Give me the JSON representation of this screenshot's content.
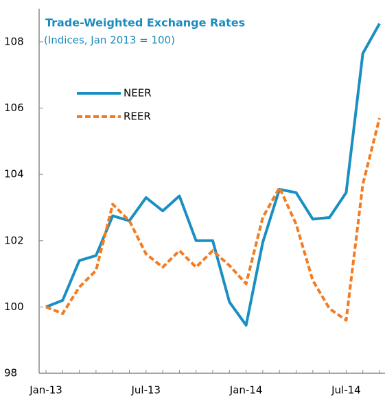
{
  "chart_data": {
    "type": "line",
    "title": "Trade-Weighted Exchange Rates",
    "subtitle": "(Indices, Jan 2013 = 100)",
    "categories": [
      "Jan-13",
      null,
      null,
      null,
      null,
      null,
      "Jul-13",
      null,
      null,
      null,
      null,
      null,
      "Jan-14",
      null,
      null,
      null,
      null,
      null,
      "Jul-14",
      null,
      null
    ],
    "series": [
      {
        "name": "NEER",
        "color": "#1a8fc1",
        "dash": false,
        "values": [
          100,
          100.2,
          101.4,
          101.55,
          102.75,
          102.6,
          103.3,
          102.9,
          103.35,
          102.0,
          102.0,
          100.15,
          99.45,
          101.95,
          103.55,
          103.45,
          102.65,
          102.7,
          103.45,
          107.65,
          108.55
        ]
      },
      {
        "name": "REER",
        "color": "#f47b20",
        "dash": true,
        "values": [
          100,
          99.8,
          100.6,
          101.1,
          103.1,
          102.6,
          101.6,
          101.2,
          101.7,
          101.2,
          101.7,
          101.25,
          100.7,
          102.7,
          103.6,
          102.5,
          100.8,
          99.95,
          99.6,
          103.7,
          105.7
        ]
      }
    ],
    "ylim": [
      98,
      109
    ],
    "yticks": [
      98,
      100,
      102,
      104,
      106,
      108
    ]
  }
}
